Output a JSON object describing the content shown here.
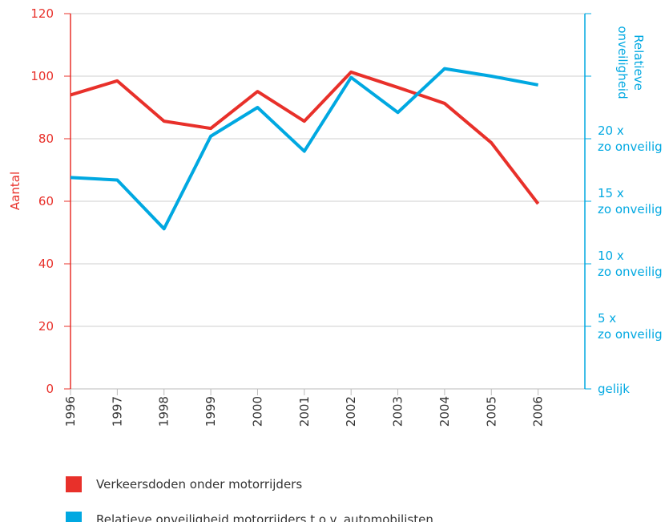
{
  "chart_data": {
    "type": "line",
    "ylabel": "Aantal",
    "y2label": [
      "Relatieve",
      "onveiligheid"
    ],
    "x": [
      1996,
      1997,
      1998,
      1999,
      2000,
      2001,
      2002,
      2003,
      2004,
      2005,
      2006
    ],
    "xlim": [
      1996,
      2007
    ],
    "xticks": [
      1996,
      1997,
      1998,
      1999,
      2000,
      2001,
      2002,
      2003,
      2004,
      2005,
      2006
    ],
    "ylim": [
      0,
      120
    ],
    "yticks": [
      0,
      20,
      40,
      60,
      80,
      100,
      120
    ],
    "y2lim": [
      0,
      30
    ],
    "y2ticks": [
      {
        "value": 0,
        "label": [
          "gelijk"
        ]
      },
      {
        "value": 5,
        "label": [
          "5 x",
          "zo onveilig"
        ]
      },
      {
        "value": 10,
        "label": [
          "10 x",
          "zo onveilig"
        ]
      },
      {
        "value": 15,
        "label": [
          "15 x",
          "zo onveilig"
        ]
      },
      {
        "value": 20,
        "label": [
          "20 x",
          "zo onveilig"
        ]
      },
      {
        "value": 25
      },
      {
        "value": 30
      }
    ],
    "grid": true,
    "series": [
      {
        "name": "Verkeersdoden onder motorrijders",
        "color": "#e8302a",
        "values": [
          94,
          98.5,
          85.6,
          83.3,
          95.1,
          85.6,
          101.3,
          96.4,
          91.3,
          78.7,
          59.2
        ]
      },
      {
        "name": "Relatieve onveiligheid motorrijders t.o.v. automobilisten",
        "color": "#00a8e1",
        "axis": "y2",
        "values": [
          16.9,
          16.7,
          12.8,
          20.2,
          22.5,
          19.0,
          24.9,
          22.1,
          25.6,
          25.0,
          24.3
        ]
      }
    ]
  }
}
